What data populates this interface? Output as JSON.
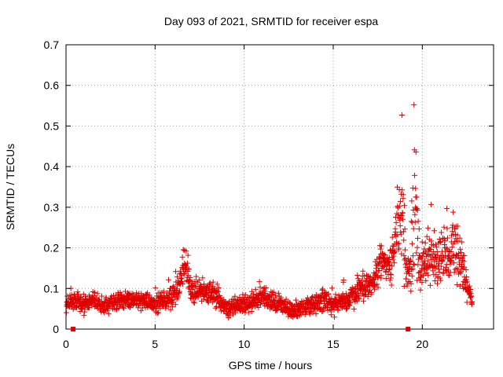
{
  "chart_data": {
    "type": "scatter",
    "title": "Day 093 of 2021, SRMTID for receiver espa",
    "xlabel": "GPS time / hours",
    "ylabel": "SRMTID / TECUs",
    "xlim": [
      0,
      24
    ],
    "ylim": [
      0,
      0.7
    ],
    "xticks": [
      0,
      5,
      10,
      15,
      20
    ],
    "yticks": [
      0,
      0.1,
      0.2,
      0.3,
      0.4,
      0.5,
      0.6,
      0.7
    ],
    "grid": true,
    "marker": "plus",
    "color": "#e00000",
    "gap_markers_x": [
      0.4,
      19.2
    ],
    "profile": {
      "x": [
        0,
        0.5,
        1,
        1.5,
        2,
        2.5,
        3,
        3.5,
        4,
        4.5,
        5,
        5.5,
        6,
        6.3,
        6.5,
        6.7,
        6.9,
        7.2,
        7.5,
        8,
        8.5,
        9,
        9.5,
        10,
        10.5,
        11,
        11.5,
        12,
        12.5,
        13,
        13.5,
        14,
        14.5,
        15,
        15.5,
        16,
        16.5,
        17,
        17.5,
        17.8,
        18,
        18.3,
        18.6,
        18.9,
        19.1,
        19.3,
        19.5,
        19.7,
        19.9,
        20.1,
        20.4,
        20.8,
        21.2,
        21.6,
        22,
        22.3,
        22.6,
        22.8
      ],
      "y": [
        0.06,
        0.07,
        0.06,
        0.07,
        0.06,
        0.06,
        0.07,
        0.07,
        0.07,
        0.07,
        0.06,
        0.07,
        0.08,
        0.1,
        0.14,
        0.17,
        0.11,
        0.09,
        0.1,
        0.09,
        0.08,
        0.05,
        0.06,
        0.06,
        0.07,
        0.08,
        0.07,
        0.06,
        0.05,
        0.05,
        0.06,
        0.06,
        0.07,
        0.06,
        0.07,
        0.08,
        0.1,
        0.11,
        0.14,
        0.18,
        0.15,
        0.16,
        0.25,
        0.3,
        0.14,
        0.14,
        0.28,
        0.25,
        0.14,
        0.16,
        0.18,
        0.17,
        0.19,
        0.18,
        0.2,
        0.14,
        0.09,
        0.07
      ],
      "spread": [
        0.03,
        0.03,
        0.03,
        0.03,
        0.03,
        0.03,
        0.03,
        0.03,
        0.03,
        0.03,
        0.03,
        0.03,
        0.04,
        0.04,
        0.06,
        0.08,
        0.05,
        0.04,
        0.04,
        0.04,
        0.04,
        0.03,
        0.03,
        0.03,
        0.04,
        0.04,
        0.04,
        0.03,
        0.03,
        0.03,
        0.03,
        0.03,
        0.04,
        0.04,
        0.04,
        0.04,
        0.04,
        0.05,
        0.07,
        0.08,
        0.06,
        0.08,
        0.18,
        0.2,
        0.06,
        0.06,
        0.38,
        0.2,
        0.08,
        0.08,
        0.1,
        0.09,
        0.11,
        0.1,
        0.13,
        0.1,
        0.04,
        0.02
      ]
    }
  }
}
